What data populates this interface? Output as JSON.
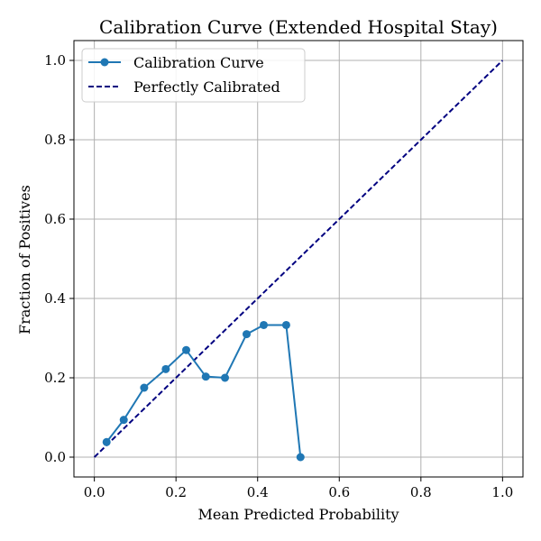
{
  "chart_data": {
    "type": "line",
    "title": "Calibration Curve (Extended Hospital Stay)",
    "xlabel": "Mean Predicted Probability",
    "ylabel": "Fraction of Positives",
    "xlim": [
      -0.05,
      1.05
    ],
    "ylim": [
      -0.05,
      1.05
    ],
    "xticks": [
      "0.0",
      "0.2",
      "0.4",
      "0.6",
      "0.8",
      "1.0"
    ],
    "yticks": [
      "0.0",
      "0.2",
      "0.4",
      "0.6",
      "0.8",
      "1.0"
    ],
    "grid": true,
    "legend_position": "upper-left",
    "series": [
      {
        "name": "Calibration Curve",
        "style": "solid-with-markers",
        "color": "#1f77b4",
        "x": [
          0.03,
          0.072,
          0.122,
          0.175,
          0.225,
          0.273,
          0.32,
          0.373,
          0.415,
          0.47,
          0.505
        ],
        "y": [
          0.038,
          0.094,
          0.175,
          0.222,
          0.27,
          0.203,
          0.2,
          0.31,
          0.333,
          0.333,
          0.0
        ]
      },
      {
        "name": "Perfectly Calibrated",
        "style": "dashed",
        "color": "#000080",
        "x": [
          0.0,
          1.0
        ],
        "y": [
          0.0,
          1.0
        ]
      }
    ]
  }
}
